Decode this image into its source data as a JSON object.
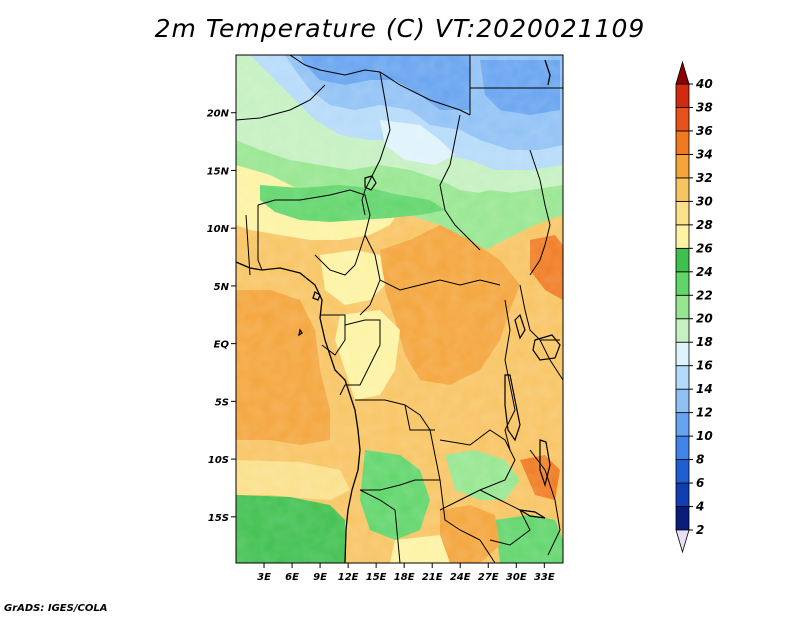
{
  "title": "2m Temperature (C) VT:2020021109",
  "footer": "GrADS: IGES/COLA",
  "map": {
    "lon_range": [
      0,
      35
    ],
    "lat_range": [
      -19,
      25
    ],
    "lon_ticks": [
      "3E",
      "6E",
      "9E",
      "12E",
      "15E",
      "18E",
      "21E",
      "24E",
      "27E",
      "30E",
      "33E"
    ],
    "lat_ticks": [
      "20N",
      "15N",
      "10N",
      "5N",
      "EQ",
      "5S",
      "10S",
      "15S"
    ]
  },
  "colorbar": {
    "labels": [
      "2",
      "4",
      "6",
      "8",
      "10",
      "12",
      "14",
      "16",
      "18",
      "20",
      "22",
      "24",
      "26",
      "28",
      "30",
      "32",
      "34",
      "36",
      "38",
      "40"
    ],
    "colors": [
      "#081d7a",
      "#0f3fb0",
      "#1f5fd0",
      "#3f84e6",
      "#66a3f0",
      "#8fc1f5",
      "#b4dafa",
      "#dff3fb",
      "#c5f0c1",
      "#96e68f",
      "#5fd56a",
      "#3fc04e",
      "#fdf3a3",
      "#fbe08a",
      "#f8c462",
      "#f4a43a",
      "#f07a20",
      "#e6521a",
      "#d22a12",
      "#b30d0d"
    ],
    "under_color": "#e8e0f8",
    "over_color": "#8b0000"
  }
}
